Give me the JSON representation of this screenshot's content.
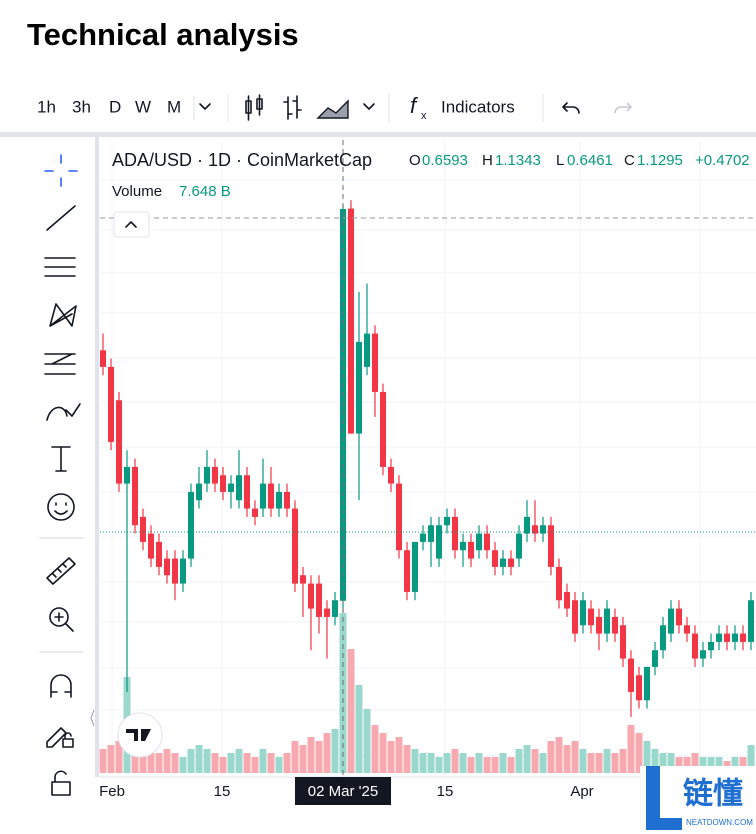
{
  "header": {
    "title": "Technical analysis"
  },
  "toolbar": {
    "intervals": [
      "1h",
      "3h",
      "D",
      "W",
      "M"
    ],
    "indicators": "Indicators"
  },
  "legend": {
    "symbol": "ADA/USD · 1D · CoinMarketCap",
    "labels": [
      "O",
      "H",
      "L",
      "C"
    ],
    "change": "+0.4702",
    "volume_label": "Volume",
    "volume_value": "7.648 B"
  },
  "x_axis": {
    "labels": [
      "Feb",
      "15",
      "15",
      "Apr"
    ],
    "crosshair_label": "02 Mar '25"
  },
  "watermark": {
    "brand": "链懂",
    "site": "NEATDOWN.COM"
  },
  "chart": {
    "type": "candlestick",
    "up_color": "#089981",
    "down_color": "#f23645",
    "volume_up_color": "#9ad8cd",
    "volume_down_color": "#f7a9b0",
    "candles": [
      [
        0.96,
        0.98,
        0.93,
        0.94
      ],
      [
        0.94,
        0.95,
        0.84,
        0.85
      ],
      [
        0.9,
        0.91,
        0.79,
        0.8
      ],
      [
        0.8,
        0.84,
        0.55,
        0.82
      ],
      [
        0.82,
        0.83,
        0.74,
        0.75
      ],
      [
        0.76,
        0.77,
        0.72,
        0.73
      ],
      [
        0.74,
        0.75,
        0.7,
        0.71
      ],
      [
        0.73,
        0.74,
        0.69,
        0.7
      ],
      [
        0.71,
        0.72,
        0.68,
        0.69
      ],
      [
        0.71,
        0.72,
        0.66,
        0.68
      ],
      [
        0.68,
        0.72,
        0.67,
        0.71
      ],
      [
        0.71,
        0.8,
        0.7,
        0.79
      ],
      [
        0.78,
        0.82,
        0.77,
        0.8
      ],
      [
        0.8,
        0.84,
        0.79,
        0.82
      ],
      [
        0.82,
        0.83,
        0.79,
        0.8
      ],
      [
        0.81,
        0.82,
        0.78,
        0.79
      ],
      [
        0.79,
        0.81,
        0.77,
        0.8
      ],
      [
        0.78,
        0.84,
        0.77,
        0.81
      ],
      [
        0.81,
        0.82,
        0.76,
        0.77
      ],
      [
        0.77,
        0.78,
        0.75,
        0.76
      ],
      [
        0.77,
        0.83,
        0.76,
        0.8
      ],
      [
        0.8,
        0.82,
        0.76,
        0.77
      ],
      [
        0.77,
        0.8,
        0.76,
        0.79
      ],
      [
        0.79,
        0.8,
        0.76,
        0.77
      ],
      [
        0.77,
        0.78,
        0.67,
        0.68
      ],
      [
        0.69,
        0.7,
        0.64,
        0.68
      ],
      [
        0.68,
        0.69,
        0.6,
        0.65
      ],
      [
        0.68,
        0.69,
        0.62,
        0.64
      ],
      [
        0.65,
        0.66,
        0.59,
        0.64
      ],
      [
        0.64,
        0.67,
        0.63,
        0.66
      ],
      [
        0.6593,
        1.1343,
        0.6461,
        1.1295
      ],
      [
        1.13,
        1.14,
        0.86,
        0.86
      ],
      [
        0.86,
        1.03,
        0.78,
        0.97
      ],
      [
        0.94,
        1.04,
        0.93,
        0.98
      ],
      [
        0.98,
        0.99,
        0.88,
        0.91
      ],
      [
        0.91,
        0.92,
        0.81,
        0.82
      ],
      [
        0.82,
        0.83,
        0.79,
        0.8
      ],
      [
        0.8,
        0.81,
        0.71,
        0.72
      ],
      [
        0.72,
        0.73,
        0.66,
        0.67
      ],
      [
        0.67,
        0.73,
        0.66,
        0.73
      ],
      [
        0.73,
        0.75,
        0.72,
        0.74
      ],
      [
        0.73,
        0.76,
        0.7,
        0.75
      ],
      [
        0.71,
        0.76,
        0.7,
        0.75
      ],
      [
        0.75,
        0.77,
        0.74,
        0.76
      ],
      [
        0.76,
        0.77,
        0.71,
        0.72
      ],
      [
        0.72,
        0.74,
        0.7,
        0.73
      ],
      [
        0.73,
        0.74,
        0.7,
        0.71
      ],
      [
        0.72,
        0.75,
        0.71,
        0.74
      ],
      [
        0.74,
        0.75,
        0.71,
        0.72
      ],
      [
        0.72,
        0.73,
        0.69,
        0.7
      ],
      [
        0.7,
        0.72,
        0.69,
        0.71
      ],
      [
        0.71,
        0.72,
        0.69,
        0.7
      ],
      [
        0.71,
        0.75,
        0.7,
        0.74
      ],
      [
        0.74,
        0.78,
        0.73,
        0.76
      ],
      [
        0.75,
        0.78,
        0.73,
        0.74
      ],
      [
        0.74,
        0.76,
        0.73,
        0.75
      ],
      [
        0.75,
        0.76,
        0.69,
        0.7
      ],
      [
        0.7,
        0.71,
        0.65,
        0.66
      ],
      [
        0.67,
        0.68,
        0.64,
        0.65
      ],
      [
        0.66,
        0.67,
        0.61,
        0.62
      ],
      [
        0.63,
        0.67,
        0.62,
        0.66
      ],
      [
        0.65,
        0.66,
        0.62,
        0.63
      ],
      [
        0.64,
        0.65,
        0.6,
        0.62
      ],
      [
        0.62,
        0.66,
        0.61,
        0.65
      ],
      [
        0.64,
        0.65,
        0.61,
        0.62
      ],
      [
        0.63,
        0.64,
        0.58,
        0.59
      ],
      [
        0.59,
        0.6,
        0.52,
        0.55
      ],
      [
        0.57,
        0.58,
        0.53,
        0.54
      ],
      [
        0.54,
        0.58,
        0.53,
        0.58
      ],
      [
        0.58,
        0.61,
        0.57,
        0.6
      ],
      [
        0.6,
        0.64,
        0.59,
        0.63
      ],
      [
        0.62,
        0.66,
        0.61,
        0.65
      ],
      [
        0.65,
        0.66,
        0.62,
        0.63
      ],
      [
        0.63,
        0.64,
        0.61,
        0.62
      ],
      [
        0.62,
        0.63,
        0.58,
        0.59
      ],
      [
        0.59,
        0.61,
        0.58,
        0.6
      ],
      [
        0.6,
        0.62,
        0.59,
        0.61
      ],
      [
        0.61,
        0.63,
        0.6,
        0.62
      ],
      [
        0.62,
        0.63,
        0.6,
        0.61
      ],
      [
        0.61,
        0.63,
        0.6,
        0.62
      ],
      [
        0.62,
        0.63,
        0.6,
        0.61
      ],
      [
        0.61,
        0.67,
        0.6,
        0.66
      ]
    ],
    "volumes": [
      6,
      7,
      8,
      24,
      9,
      7,
      5,
      5,
      6,
      5,
      4,
      6,
      7,
      6,
      5,
      4,
      5,
      6,
      5,
      4,
      6,
      5,
      4,
      5,
      8,
      7,
      9,
      8,
      10,
      11,
      40,
      31,
      22,
      16,
      12,
      10,
      8,
      9,
      7,
      6,
      5,
      5,
      4,
      5,
      6,
      5,
      4,
      5,
      4,
      4,
      5,
      4,
      6,
      7,
      6,
      5,
      8,
      9,
      7,
      8,
      6,
      5,
      5,
      6,
      5,
      6,
      12,
      10,
      8,
      6,
      5,
      5,
      4,
      4,
      5,
      4,
      4,
      4,
      3,
      4,
      4,
      7
    ]
  }
}
